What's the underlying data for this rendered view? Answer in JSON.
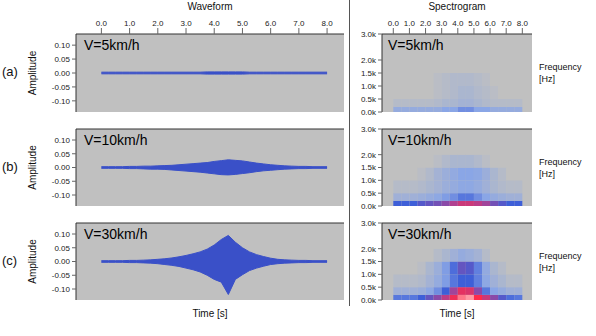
{
  "column_titles": [
    "Waveform",
    "Spectrogram"
  ],
  "row_labels": [
    "(a)",
    "(b)",
    "(c)"
  ],
  "chart_data": [
    {
      "type": "area",
      "annotations": [
        "V=5km/h"
      ],
      "ylabel": "Amplitude",
      "color": "#3a50c8",
      "grid": false,
      "tick_labels": true,
      "xlim": [
        -0.9,
        8.6
      ],
      "xticks": [
        {
          "value": 0,
          "label": "0.0"
        },
        {
          "value": 1,
          "label": "1.0"
        },
        {
          "value": 2,
          "label": "2.0"
        },
        {
          "value": 3,
          "label": "3.0"
        },
        {
          "value": 4,
          "label": "4.0"
        },
        {
          "value": 5,
          "label": "5.0"
        },
        {
          "value": 6,
          "label": "6.0"
        },
        {
          "value": 7,
          "label": "7.0"
        },
        {
          "value": 8,
          "label": "8.0"
        }
      ],
      "ylim": [
        -0.14,
        0.14
      ],
      "yticks": [
        {
          "value": 0.1,
          "label": "0.10"
        },
        {
          "value": 0.05,
          "label": "0.05"
        },
        {
          "value": 0,
          "label": "0.00"
        },
        {
          "value": -0.05,
          "label": "-0.05"
        },
        {
          "value": -0.1,
          "label": "-0.10"
        }
      ],
      "x": [
        0,
        0.25,
        0.5,
        0.75,
        1,
        1.25,
        1.5,
        1.75,
        2,
        2.25,
        2.5,
        2.75,
        3,
        3.25,
        3.5,
        3.75,
        4,
        4.25,
        4.5,
        4.75,
        5,
        5.25,
        5.5,
        5.75,
        6,
        6.25,
        6.5,
        6.75,
        7,
        7.25,
        7.5,
        7.75,
        8
      ],
      "upper": [
        0.003,
        0.003,
        0.003,
        0.003,
        0.003,
        0.003,
        0.003,
        0.003,
        0.003,
        0.003,
        0.003,
        0.003,
        0.003,
        0.003,
        0.003,
        0.004,
        0.004,
        0.004,
        0.004,
        0.004,
        0.004,
        0.003,
        0.003,
        0.003,
        0.003,
        0.003,
        0.003,
        0.003,
        0.003,
        0.003,
        0.003,
        0.003,
        0.003
      ],
      "lower": [
        -0.003,
        -0.003,
        -0.003,
        -0.003,
        -0.003,
        -0.003,
        -0.003,
        -0.003,
        -0.003,
        -0.003,
        -0.003,
        -0.003,
        -0.003,
        -0.003,
        -0.003,
        -0.004,
        -0.004,
        -0.004,
        -0.004,
        -0.004,
        -0.004,
        -0.003,
        -0.003,
        -0.003,
        -0.003,
        -0.003,
        -0.003,
        -0.003,
        -0.003,
        -0.003,
        -0.003,
        -0.003,
        -0.003
      ]
    },
    {
      "type": "heatmap",
      "annotations": [
        "V=5km/h"
      ],
      "ylabel": "Frequency [Hz]",
      "grid": false,
      "tick_labels": true,
      "xlim": [
        -0.7,
        8.6
      ],
      "xticks": [
        {
          "value": 0,
          "label": "0.0"
        },
        {
          "value": 1,
          "label": "1.0"
        },
        {
          "value": 2,
          "label": "2.0"
        },
        {
          "value": 3,
          "label": "3.0"
        },
        {
          "value": 4,
          "label": "4.0"
        },
        {
          "value": 5,
          "label": "5.0"
        },
        {
          "value": 6,
          "label": "6.0"
        },
        {
          "value": 7,
          "label": "7.0"
        },
        {
          "value": 8,
          "label": "8.0"
        }
      ],
      "ylim": [
        0,
        3000
      ],
      "yticks": [
        {
          "value": 0,
          "label": "0.0k"
        },
        {
          "value": 500,
          "label": "0.5k"
        },
        {
          "value": 1000,
          "label": "1.0k"
        },
        {
          "value": 1500,
          "label": "1.5k"
        },
        {
          "value": 2000,
          "label": "2.0k"
        },
        {
          "value": 3000,
          "label": "3.0k"
        }
      ],
      "time_edges": [
        0,
        0.5,
        1,
        1.5,
        2,
        2.5,
        3,
        3.5,
        4,
        4.5,
        5,
        5.5,
        6,
        6.5,
        7,
        7.5,
        8
      ],
      "frequency_edges": [
        0,
        200,
        500,
        1000,
        1500,
        2000,
        3000
      ],
      "cells": [
        [
          0.35,
          0.35,
          0.35,
          0.35,
          0.35,
          0.35,
          0.4,
          0.4,
          0.45,
          0.45,
          0.4,
          0.4,
          0.35,
          0.35,
          0.35,
          0.35
        ],
        [
          0.2,
          0.2,
          0.2,
          0.2,
          0.2,
          0.22,
          0.25,
          0.25,
          0.28,
          0.28,
          0.25,
          0.22,
          0.2,
          0.2,
          0.2,
          0.2
        ],
        [
          0.15,
          0.15,
          0.15,
          0.15,
          0.15,
          0.18,
          0.2,
          0.22,
          0.25,
          0.25,
          0.22,
          0.2,
          0.18,
          0.15,
          0.15,
          0.15
        ],
        [
          0.1,
          0.1,
          0.1,
          0.12,
          0.15,
          0.18,
          0.2,
          0.22,
          0.22,
          0.22,
          0.2,
          0.18,
          0.15,
          0.12,
          0.1,
          0.1
        ],
        [
          0.08,
          0.08,
          0.08,
          0.1,
          0.12,
          0.15,
          0.15,
          0.15,
          0.15,
          0.15,
          0.12,
          0.1,
          0.1,
          0.08,
          0.08,
          0.08
        ],
        [
          0.05,
          0.05,
          0.05,
          0.05,
          0.05,
          0.05,
          0.08,
          0.08,
          0.08,
          0.08,
          0.05,
          0.05,
          0.05,
          0.05,
          0.05,
          0.05
        ]
      ]
    },
    {
      "type": "area",
      "annotations": [
        "V=10km/h"
      ],
      "ylabel": "Amplitude",
      "color": "#3a50c8",
      "grid": false,
      "tick_labels": "y",
      "xlim": [
        -0.9,
        8.6
      ],
      "ylim": [
        -0.14,
        0.14
      ],
      "yticks": [
        {
          "value": 0.1,
          "label": "0.10"
        },
        {
          "value": 0.05,
          "label": "0.05"
        },
        {
          "value": 0,
          "label": "0.00"
        },
        {
          "value": -0.05,
          "label": "-0.05"
        },
        {
          "value": -0.1,
          "label": "-0.10"
        }
      ],
      "x": [
        0,
        0.25,
        0.5,
        0.75,
        1,
        1.25,
        1.5,
        1.75,
        2,
        2.25,
        2.5,
        2.75,
        3,
        3.25,
        3.5,
        3.75,
        4,
        4.25,
        4.5,
        4.75,
        5,
        5.25,
        5.5,
        5.75,
        6,
        6.25,
        6.5,
        6.75,
        7,
        7.25,
        7.5,
        7.75,
        8
      ],
      "upper": [
        0.003,
        0.003,
        0.003,
        0.003,
        0.004,
        0.004,
        0.005,
        0.005,
        0.006,
        0.007,
        0.008,
        0.01,
        0.012,
        0.014,
        0.016,
        0.018,
        0.022,
        0.025,
        0.028,
        0.026,
        0.024,
        0.02,
        0.016,
        0.013,
        0.01,
        0.008,
        0.006,
        0.005,
        0.004,
        0.004,
        0.003,
        0.003,
        0.003
      ],
      "lower": [
        -0.003,
        -0.003,
        -0.003,
        -0.003,
        -0.004,
        -0.004,
        -0.005,
        -0.006,
        -0.006,
        -0.007,
        -0.009,
        -0.011,
        -0.013,
        -0.015,
        -0.017,
        -0.02,
        -0.023,
        -0.026,
        -0.027,
        -0.025,
        -0.022,
        -0.019,
        -0.015,
        -0.012,
        -0.01,
        -0.008,
        -0.006,
        -0.005,
        -0.004,
        -0.004,
        -0.003,
        -0.003,
        -0.003
      ]
    },
    {
      "type": "heatmap",
      "annotations": [
        "V=10km/h"
      ],
      "ylabel": "Frequency [Hz]",
      "grid": false,
      "tick_labels": "y",
      "xlim": [
        -0.7,
        8.6
      ],
      "ylim": [
        0,
        3000
      ],
      "yticks": [
        {
          "value": 0,
          "label": "0.0k"
        },
        {
          "value": 500,
          "label": "0.5k"
        },
        {
          "value": 1000,
          "label": "1.0k"
        },
        {
          "value": 1500,
          "label": "1.5k"
        },
        {
          "value": 2000,
          "label": "2.0k"
        },
        {
          "value": 3000,
          "label": "3.0k"
        }
      ],
      "time_edges": [
        0,
        0.5,
        1,
        1.5,
        2,
        2.5,
        3,
        3.5,
        4,
        4.5,
        5,
        5.5,
        6,
        6.5,
        7,
        7.5,
        8
      ],
      "frequency_edges": [
        0,
        200,
        500,
        1000,
        1500,
        2000,
        3000
      ],
      "cells": [
        [
          0.55,
          0.55,
          0.55,
          0.58,
          0.6,
          0.62,
          0.65,
          0.7,
          0.75,
          0.75,
          0.72,
          0.68,
          0.62,
          0.58,
          0.55,
          0.55
        ],
        [
          0.3,
          0.3,
          0.3,
          0.32,
          0.35,
          0.38,
          0.42,
          0.45,
          0.5,
          0.5,
          0.45,
          0.4,
          0.35,
          0.32,
          0.3,
          0.3
        ],
        [
          0.2,
          0.2,
          0.2,
          0.22,
          0.25,
          0.28,
          0.32,
          0.35,
          0.38,
          0.38,
          0.35,
          0.3,
          0.25,
          0.22,
          0.2,
          0.2
        ],
        [
          0.15,
          0.15,
          0.15,
          0.18,
          0.22,
          0.28,
          0.32,
          0.36,
          0.4,
          0.4,
          0.38,
          0.32,
          0.25,
          0.2,
          0.15,
          0.15
        ],
        [
          0.1,
          0.1,
          0.1,
          0.12,
          0.15,
          0.18,
          0.22,
          0.25,
          0.25,
          0.25,
          0.22,
          0.18,
          0.15,
          0.12,
          0.1,
          0.1
        ],
        [
          0.05,
          0.05,
          0.05,
          0.05,
          0.08,
          0.08,
          0.1,
          0.1,
          0.12,
          0.12,
          0.1,
          0.1,
          0.08,
          0.05,
          0.05,
          0.05
        ]
      ]
    },
    {
      "type": "area",
      "annotations": [
        "V=30km/h"
      ],
      "ylabel": "Amplitude",
      "xlabel": "Time [s]",
      "color": "#3a50c8",
      "grid": false,
      "tick_labels": "y",
      "xlim": [
        -0.9,
        8.6
      ],
      "ylim": [
        -0.14,
        0.14
      ],
      "yticks": [
        {
          "value": 0.1,
          "label": "0.10"
        },
        {
          "value": 0.05,
          "label": "0.05"
        },
        {
          "value": 0,
          "label": "0.00"
        },
        {
          "value": -0.05,
          "label": "-0.05"
        },
        {
          "value": -0.1,
          "label": "-0.10"
        }
      ],
      "x": [
        0,
        0.25,
        0.5,
        0.75,
        1,
        1.25,
        1.5,
        1.75,
        2,
        2.25,
        2.5,
        2.75,
        3,
        3.25,
        3.5,
        3.75,
        4,
        4.25,
        4.5,
        4.75,
        5,
        5.25,
        5.5,
        5.75,
        6,
        6.25,
        6.5,
        6.75,
        7,
        7.25,
        7.5,
        7.75,
        8
      ],
      "upper": [
        0.003,
        0.003,
        0.003,
        0.003,
        0.004,
        0.004,
        0.005,
        0.006,
        0.008,
        0.01,
        0.013,
        0.017,
        0.022,
        0.028,
        0.035,
        0.045,
        0.06,
        0.08,
        0.095,
        0.07,
        0.05,
        0.035,
        0.025,
        0.018,
        0.012,
        0.008,
        0.006,
        0.005,
        0.004,
        0.004,
        0.003,
        0.003,
        0.003
      ],
      "lower": [
        -0.003,
        -0.003,
        -0.003,
        -0.003,
        -0.004,
        -0.004,
        -0.005,
        -0.006,
        -0.008,
        -0.011,
        -0.014,
        -0.018,
        -0.024,
        -0.03,
        -0.038,
        -0.05,
        -0.065,
        -0.075,
        -0.12,
        -0.065,
        -0.048,
        -0.033,
        -0.024,
        -0.017,
        -0.011,
        -0.008,
        -0.006,
        -0.005,
        -0.004,
        -0.004,
        -0.003,
        -0.003,
        -0.003
      ]
    },
    {
      "type": "heatmap",
      "annotations": [
        "V=30km/h"
      ],
      "ylabel": "Frequency [Hz]",
      "xlabel": "Time [s]",
      "grid": false,
      "tick_labels": "y",
      "xlim": [
        -0.7,
        8.6
      ],
      "ylim": [
        0,
        3000
      ],
      "yticks": [
        {
          "value": 0,
          "label": "0.0k"
        },
        {
          "value": 500,
          "label": "0.5k"
        },
        {
          "value": 1000,
          "label": "1.0k"
        },
        {
          "value": 1500,
          "label": "1.5k"
        },
        {
          "value": 2000,
          "label": "2.0k"
        },
        {
          "value": 3000,
          "label": "3.0k"
        }
      ],
      "time_edges": [
        0,
        0.5,
        1,
        1.5,
        2,
        2.5,
        3,
        3.5,
        4,
        4.5,
        5,
        5.5,
        6,
        6.5,
        7,
        7.5,
        8
      ],
      "frequency_edges": [
        0,
        200,
        500,
        1000,
        1500,
        2000,
        3000
      ],
      "cells": [
        [
          0.5,
          0.5,
          0.5,
          0.55,
          0.6,
          0.65,
          0.72,
          0.82,
          0.92,
          0.95,
          0.85,
          0.75,
          0.65,
          0.58,
          0.52,
          0.5
        ],
        [
          0.3,
          0.3,
          0.3,
          0.32,
          0.38,
          0.45,
          0.55,
          0.68,
          0.8,
          0.78,
          0.65,
          0.5,
          0.4,
          0.35,
          0.3,
          0.3
        ],
        [
          0.2,
          0.2,
          0.2,
          0.22,
          0.28,
          0.35,
          0.42,
          0.5,
          0.55,
          0.55,
          0.48,
          0.38,
          0.3,
          0.25,
          0.2,
          0.2
        ],
        [
          0.15,
          0.15,
          0.15,
          0.18,
          0.25,
          0.32,
          0.42,
          0.52,
          0.6,
          0.58,
          0.48,
          0.36,
          0.25,
          0.2,
          0.15,
          0.15
        ],
        [
          0.1,
          0.1,
          0.1,
          0.12,
          0.15,
          0.2,
          0.25,
          0.3,
          0.35,
          0.32,
          0.28,
          0.2,
          0.15,
          0.12,
          0.1,
          0.1
        ],
        [
          0.05,
          0.05,
          0.05,
          0.05,
          0.08,
          0.1,
          0.12,
          0.15,
          0.15,
          0.15,
          0.12,
          0.1,
          0.08,
          0.05,
          0.05,
          0.05
        ]
      ]
    }
  ]
}
